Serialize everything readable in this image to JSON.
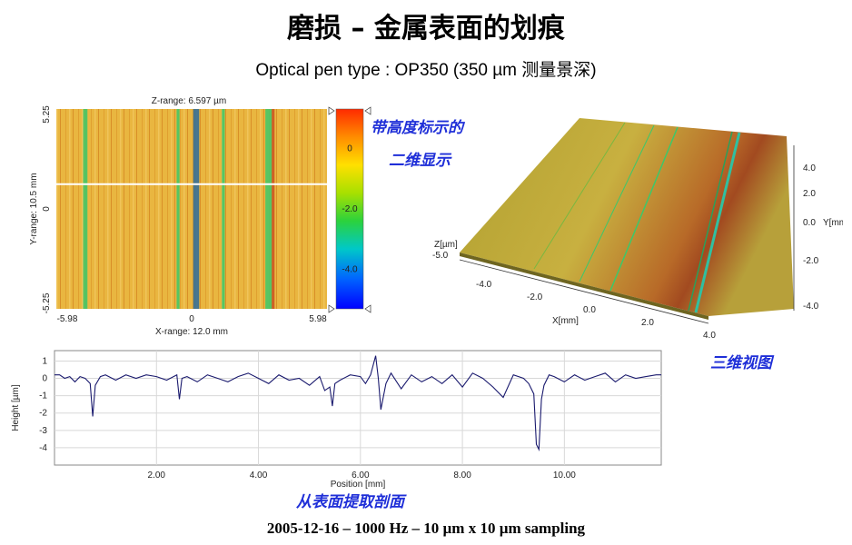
{
  "title": "磨损 – 金属表面的划痕",
  "subtitle": "Optical pen type : OP350 (350 µm 测量景深)",
  "footer": "2005-12-16  – 1000 Hz – 10 µm x 10 µm sampling",
  "annotations": {
    "map2d_line1": "带高度标示的",
    "map2d_line2": "二维显示",
    "view3d": "三维视图",
    "profile": "从表面提取剖面"
  },
  "colors": {
    "annotation": "#1f2fd8",
    "profile_line": "#1a1a6e",
    "surface_base": "#e7b33c",
    "groove_green": "#3cc86a",
    "groove_red": "#c8501e"
  },
  "chart_data": [
    {
      "type": "heatmap",
      "name": "2D height map",
      "title": "Z-range: 6.597 µm",
      "xlabel": "X-range: 12.0 mm",
      "ylabel": "Y-range: 10.5 mm",
      "x_ticks": [
        "-5.98",
        "0",
        "5.98"
      ],
      "y_ticks": [
        "5.25",
        "0",
        "-5.25"
      ],
      "xlim": [
        -5.98,
        5.98
      ],
      "ylim": [
        -5.25,
        5.25
      ],
      "colorbar": {
        "ticks": [
          "0",
          "-2.0",
          "-4.0"
        ],
        "tick_values": [
          0,
          -2.0,
          -4.0
        ],
        "range": [
          -5.3,
          1.3
        ],
        "colors": [
          "#ff2a00",
          "#ff8c00",
          "#ffe000",
          "#a8e000",
          "#2cd23c",
          "#00c8c8",
          "#0064ff",
          "#0000ff"
        ]
      },
      "profile_line_y": 1.3,
      "grooves": [
        {
          "x": -4.7,
          "depth": -2.3,
          "color": "green"
        },
        {
          "x": -0.6,
          "depth": -1.0,
          "color": "green"
        },
        {
          "x": 0.2,
          "depth": -3.8,
          "color": "blue"
        },
        {
          "x": 1.4,
          "depth": -1.0,
          "color": "green"
        },
        {
          "x": 3.4,
          "depth": -4.3,
          "color": "green"
        },
        {
          "x": 3.6,
          "depth": 0.9,
          "color": "red"
        }
      ]
    },
    {
      "type": "area",
      "name": "3D view",
      "xlabel": "X[mm]",
      "ylabel": "Y[mm]",
      "zlabel": "Z[µm]",
      "x_ticks": [
        "-4.0",
        "-2.0",
        "0.0",
        "2.0",
        "4.0"
      ],
      "y_ticks": [
        "4.0",
        "2.0",
        "0.0",
        "-2.0",
        "-4.0"
      ],
      "z_tick": "-5.0"
    },
    {
      "type": "line",
      "name": "Extracted profile",
      "xlabel": "Position [mm]",
      "ylabel": "Height [µm]",
      "xlim": [
        0,
        11.9
      ],
      "ylim": [
        -5,
        1.6
      ],
      "x_ticks": [
        2.0,
        4.0,
        6.0,
        8.0,
        10.0
      ],
      "x_tick_labels": [
        "2.00",
        "4.00",
        "6.00",
        "8.00",
        "10.00"
      ],
      "y_ticks": [
        1,
        0,
        -1,
        -2,
        -3,
        -4
      ],
      "y_tick_labels": [
        "1",
        "0",
        "-1",
        "-2",
        "-3",
        "-4"
      ],
      "series": [
        {
          "x": [
            0.0,
            0.1,
            0.2,
            0.3,
            0.4,
            0.5,
            0.6,
            0.7,
            0.75,
            0.8,
            0.9,
            1.0,
            1.2,
            1.4,
            1.6,
            1.8,
            2.0,
            2.2,
            2.4,
            2.45,
            2.5,
            2.6,
            2.8,
            3.0,
            3.2,
            3.4,
            3.6,
            3.8,
            4.0,
            4.2,
            4.4,
            4.6,
            4.8,
            5.0,
            5.2,
            5.3,
            5.4,
            5.45,
            5.5,
            5.6,
            5.8,
            6.0,
            6.1,
            6.2,
            6.3,
            6.35,
            6.4,
            6.5,
            6.6,
            6.8,
            7.0,
            7.2,
            7.4,
            7.6,
            7.8,
            8.0,
            8.2,
            8.4,
            8.6,
            8.8,
            9.0,
            9.2,
            9.3,
            9.4,
            9.45,
            9.5,
            9.55,
            9.6,
            9.7,
            9.8,
            10.0,
            10.2,
            10.4,
            10.6,
            10.8,
            11.0,
            11.2,
            11.4,
            11.6,
            11.8,
            11.9
          ],
          "y": [
            0.2,
            0.2,
            0.0,
            0.1,
            -0.2,
            0.1,
            0.0,
            -0.3,
            -2.2,
            -0.4,
            0.1,
            0.2,
            -0.1,
            0.2,
            0.0,
            0.2,
            0.1,
            -0.1,
            0.2,
            -1.2,
            0.0,
            0.1,
            -0.2,
            0.2,
            0.0,
            -0.2,
            0.1,
            0.3,
            0.0,
            -0.3,
            0.2,
            -0.1,
            0.0,
            -0.4,
            0.1,
            -0.7,
            -0.5,
            -1.6,
            -0.3,
            -0.1,
            0.2,
            0.1,
            -0.3,
            0.2,
            1.3,
            0.0,
            -1.8,
            -0.3,
            0.3,
            -0.6,
            0.2,
            -0.2,
            0.1,
            -0.3,
            0.2,
            -0.5,
            0.3,
            0.0,
            -0.5,
            -1.1,
            0.2,
            0.0,
            -0.3,
            -0.9,
            -3.8,
            -4.1,
            -1.2,
            -0.4,
            0.2,
            0.1,
            -0.2,
            0.2,
            -0.1,
            0.1,
            0.3,
            -0.2,
            0.2,
            0.0,
            0.1,
            0.2,
            0.2
          ]
        }
      ]
    }
  ]
}
